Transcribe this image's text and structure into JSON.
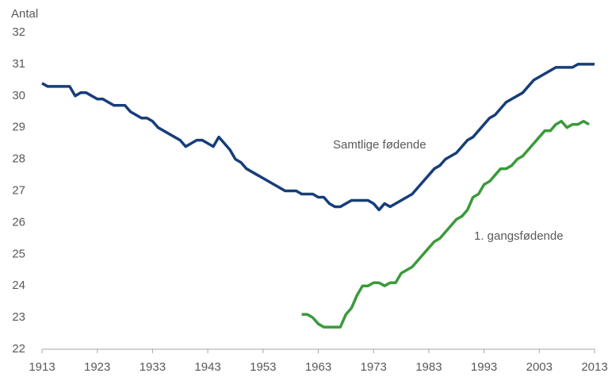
{
  "chart_data": {
    "type": "line",
    "y_label": "Antal",
    "x": [
      1913,
      1914,
      1915,
      1916,
      1917,
      1918,
      1919,
      1920,
      1921,
      1922,
      1923,
      1924,
      1925,
      1926,
      1927,
      1928,
      1929,
      1930,
      1931,
      1932,
      1933,
      1934,
      1935,
      1936,
      1937,
      1938,
      1939,
      1940,
      1941,
      1942,
      1943,
      1944,
      1945,
      1946,
      1947,
      1948,
      1949,
      1950,
      1951,
      1952,
      1953,
      1954,
      1955,
      1956,
      1957,
      1958,
      1959,
      1960,
      1961,
      1962,
      1963,
      1964,
      1965,
      1966,
      1967,
      1968,
      1969,
      1970,
      1971,
      1972,
      1973,
      1974,
      1975,
      1976,
      1977,
      1978,
      1979,
      1980,
      1981,
      1982,
      1983,
      1984,
      1985,
      1986,
      1987,
      1988,
      1989,
      1990,
      1991,
      1992,
      1993,
      1994,
      1995,
      1996,
      1997,
      1998,
      1999,
      2000,
      2001,
      2002,
      2003,
      2004,
      2005,
      2006,
      2007,
      2008,
      2009,
      2010,
      2011,
      2012,
      2013
    ],
    "series": [
      {
        "name": "Samtlige fødende",
        "color": "#173d7a",
        "values": [
          30.4,
          30.3,
          30.3,
          30.3,
          30.3,
          30.3,
          30.0,
          30.1,
          30.1,
          30.0,
          29.9,
          29.9,
          29.8,
          29.7,
          29.7,
          29.7,
          29.5,
          29.4,
          29.3,
          29.3,
          29.2,
          29.0,
          28.9,
          28.8,
          28.7,
          28.6,
          28.4,
          28.5,
          28.6,
          28.6,
          28.5,
          28.4,
          28.7,
          28.5,
          28.3,
          28.0,
          27.9,
          27.7,
          27.6,
          27.5,
          27.4,
          27.3,
          27.2,
          27.1,
          27.0,
          27.0,
          27.0,
          26.9,
          26.9,
          26.9,
          26.8,
          26.8,
          26.6,
          26.5,
          26.5,
          26.6,
          26.7,
          26.7,
          26.7,
          26.7,
          26.6,
          26.4,
          26.6,
          26.5,
          26.6,
          26.7,
          26.8,
          26.9,
          27.1,
          27.3,
          27.5,
          27.7,
          27.8,
          28.0,
          28.1,
          28.2,
          28.4,
          28.6,
          28.7,
          28.9,
          29.1,
          29.3,
          29.4,
          29.6,
          29.8,
          29.9,
          30.0,
          30.1,
          30.3,
          30.5,
          30.6,
          30.7,
          30.8,
          30.9,
          30.9,
          30.9,
          30.9,
          31.0,
          31.0,
          31.0,
          31.0
        ]
      },
      {
        "name": "1. gangsfødende",
        "color": "#3a9a3a",
        "values": [
          null,
          null,
          null,
          null,
          null,
          null,
          null,
          null,
          null,
          null,
          null,
          null,
          null,
          null,
          null,
          null,
          null,
          null,
          null,
          null,
          null,
          null,
          null,
          null,
          null,
          null,
          null,
          null,
          null,
          null,
          null,
          null,
          null,
          null,
          null,
          null,
          null,
          null,
          null,
          null,
          null,
          null,
          null,
          null,
          null,
          null,
          null,
          23.1,
          23.1,
          23.0,
          22.8,
          22.7,
          22.7,
          22.7,
          22.7,
          23.1,
          23.3,
          23.7,
          24.0,
          24.0,
          24.1,
          24.1,
          24.0,
          24.1,
          24.1,
          24.4,
          24.5,
          24.6,
          24.8,
          25.0,
          25.2,
          25.4,
          25.5,
          25.7,
          25.9,
          26.1,
          26.2,
          26.4,
          26.8,
          26.9,
          27.2,
          27.3,
          27.5,
          27.7,
          27.7,
          27.8,
          28.0,
          28.1,
          28.3,
          28.5,
          28.7,
          28.9,
          28.9,
          29.1,
          29.2,
          29.0,
          29.1,
          29.1,
          29.2,
          29.1,
          null
        ]
      }
    ],
    "xlim": [
      1913,
      2013
    ],
    "xticks": [
      1913,
      1923,
      1933,
      1943,
      1953,
      1963,
      1973,
      1983,
      1993,
      2003,
      2013
    ],
    "ylim": [
      22,
      32
    ],
    "yticks": [
      22,
      23,
      24,
      25,
      26,
      27,
      28,
      29,
      30,
      31,
      32
    ],
    "grid": false
  }
}
